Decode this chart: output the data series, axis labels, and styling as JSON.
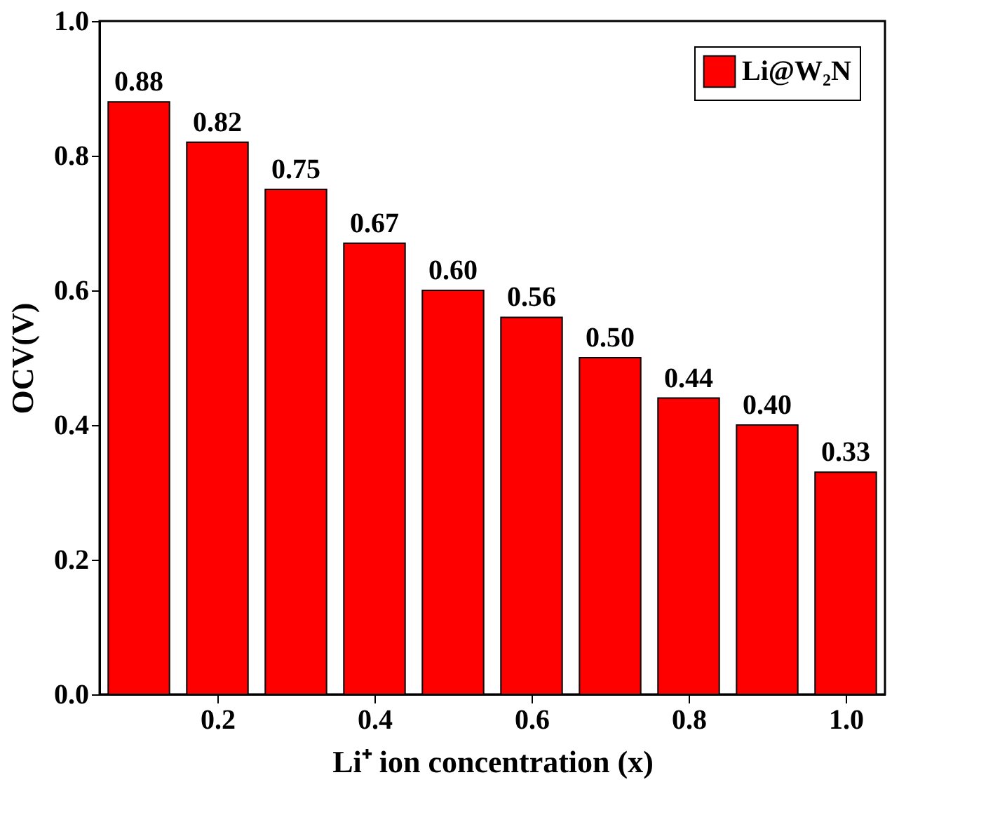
{
  "chart_data": {
    "type": "bar",
    "xlabel": "Li⁺ ion concentration (x)",
    "ylabel": "OCV(V)",
    "x": [
      0.1,
      0.2,
      0.3,
      0.4,
      0.5,
      0.6,
      0.7,
      0.8,
      0.9,
      1.0
    ],
    "series": [
      {
        "name": "Li@W₂N",
        "color": "#ff0000",
        "values": [
          0.88,
          0.82,
          0.75,
          0.67,
          0.6,
          0.56,
          0.5,
          0.44,
          0.4,
          0.33
        ],
        "value_labels": [
          "0.88",
          "0.82",
          "0.75",
          "0.67",
          "0.60",
          "0.56",
          "0.50",
          "0.44",
          "0.40",
          "0.33"
        ]
      }
    ],
    "xlim": [
      0.05,
      1.05
    ],
    "xticks": [
      0.2,
      0.4,
      0.6,
      0.8,
      {
        "value": 1,
        "label": "1.0"
      }
    ],
    "ylim": [
      0,
      1.0
    ],
    "yticks": [
      {
        "value": 0,
        "label": "0.0"
      },
      0.2,
      0.4,
      0.6,
      0.8,
      {
        "value": 1,
        "label": "1.0"
      }
    ],
    "grid": false,
    "legend": "top right"
  }
}
